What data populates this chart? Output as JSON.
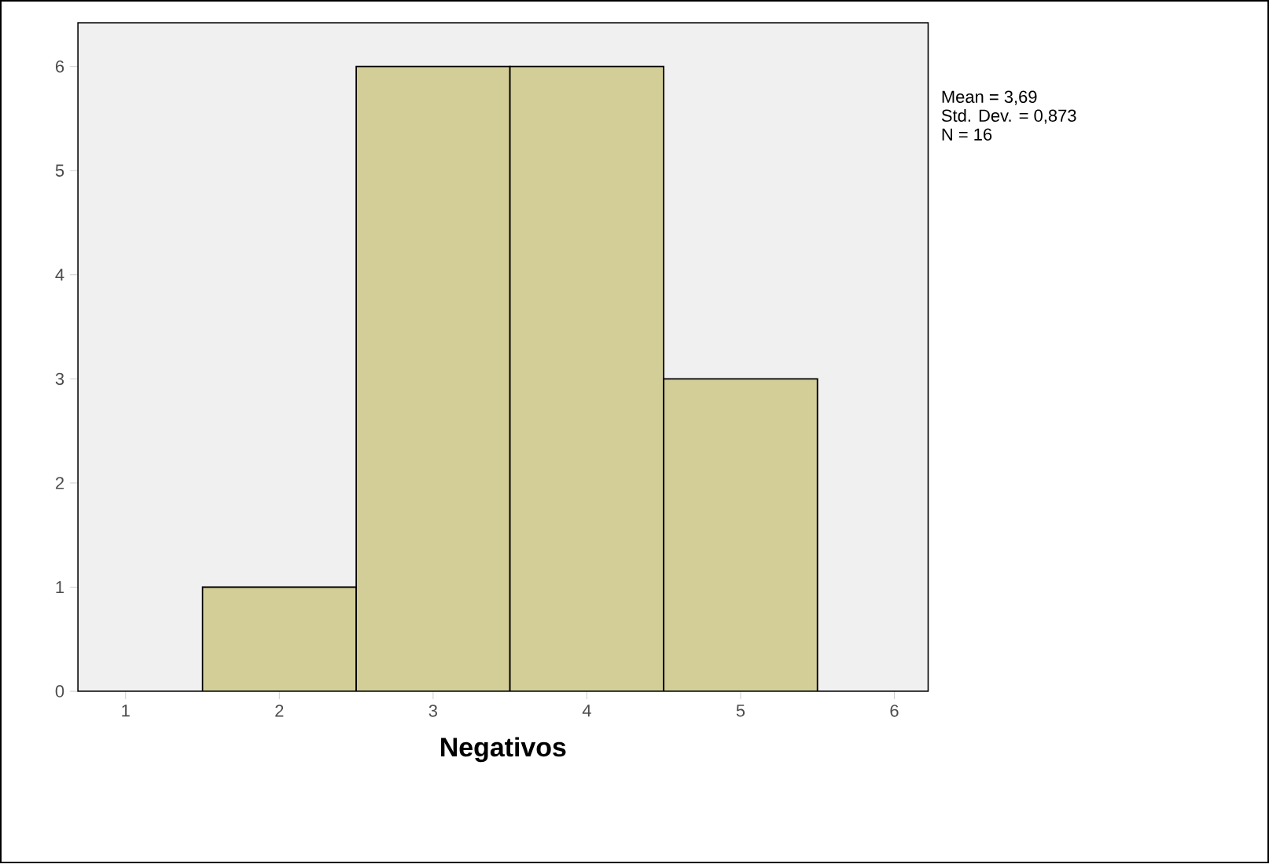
{
  "chart_data": {
    "type": "histogram",
    "xlabel": "Negativos",
    "bins": [
      1.5,
      2.5,
      3.5,
      4.5,
      5.5
    ],
    "values": [
      1,
      6,
      6,
      3
    ],
    "color": "#d3ce97",
    "xlim": [
      0.69,
      6.22
    ],
    "xticks": [
      1,
      2,
      3,
      4,
      5,
      6
    ],
    "ylim": [
      0,
      6.42
    ],
    "yticks": [
      0,
      1,
      2,
      3,
      4,
      5,
      6
    ],
    "annotations": [
      "Mean = 3,69",
      "Std. Dev. = 0,873",
      "N = 16"
    ]
  }
}
